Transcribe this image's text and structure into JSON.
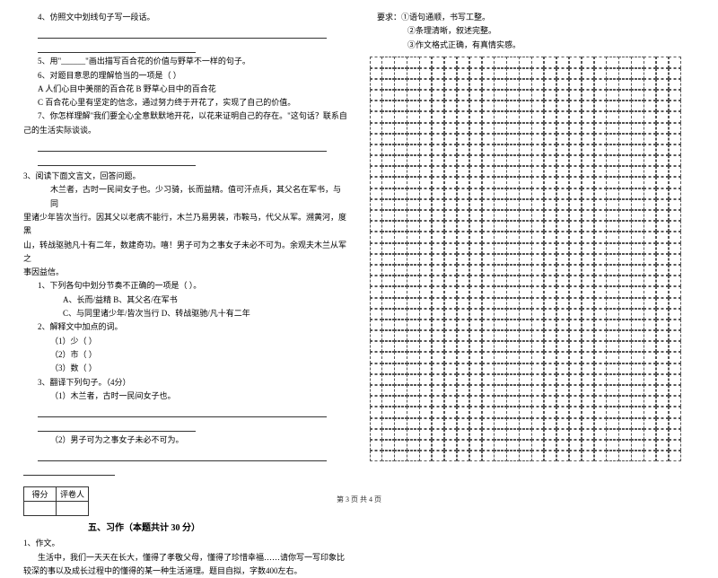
{
  "left": {
    "q4": "4、仿照文中划线句子写一段话。",
    "q5": "5、用\"______\"画出描写百合花的价值与野草不一样的句子。",
    "q6": "6、对题目意思的理解恰当的一项是（    ）",
    "q6a": "A 人们心目中美丽的百合花        B 野草心目中的百合花",
    "q6c": "C 百合花心里有坚定的信念，通过努力终于开花了，实现了自己的价值。",
    "q7a": "7、你怎样理解\"我们要全心全意默默地开花，以花来证明自己的存在。\"这句话？联系自",
    "q7b": "己的生活实际谈谈。",
    "q3head": "3、阅读下面文言文，回答问题。",
    "p1": "木兰者，古时一民间女子也。少习骑，长而益精。值可汗点兵，其父名在军书，与同",
    "p2": "里诸少年皆次当行。因其父以老病不能行，木兰乃易男装，市鞍马，代父从军。溯黄河，度黑",
    "p3": "山，转战驱驰凡十有二年，数建奇功。嘻！男子可为之事女子未必不可为。余观夫木兰从军之",
    "p4": "事因益信。",
    "s1": "1、下列各句中划分节奏不正确的一项是（        ）。",
    "s1a": "A、长而/益精                B、其父名/在军书",
    "s1c": "C、与同里诸少年/皆次当行        D、转战驱驰/凡十有二年",
    "s2": "2、解释文中加点的词。",
    "s2a": "（1）少（            ）",
    "s2b": "（2）市（            ）",
    "s2c": "（3）数（            ）",
    "s3": "3、翻译下列句子。（4分）",
    "s3a": "（1）木兰者，古时一民间女子也。",
    "s3b": "（2）男子可为之事女子未必不可为。",
    "score1": "得分",
    "score2": "评卷人",
    "section5": "五、习作（本题共计 30 分）",
    "zw1": "1、作文。",
    "zw2": "生活中，我们一天天在长大，懂得了孝敬父母，懂得了珍惜幸福……请你写一写印象比",
    "zw3": "较深的事以及成长过程中的懂得的某一种生活道理。题目自拟，字数400左右。"
  },
  "right": {
    "req": "要求：①语句通顺，书写工整。",
    "req2": "②条理清晰，叙述完整。",
    "req3": "③作文格式正确，有真情实感。"
  },
  "grid": {
    "cols": 25,
    "rows": 37
  },
  "footer": "第 3 页  共 4 页"
}
